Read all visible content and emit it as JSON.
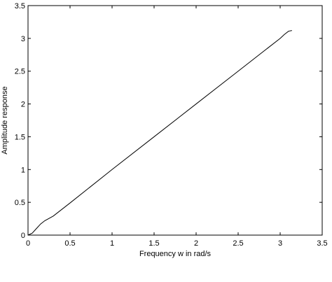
{
  "chart_data": {
    "type": "line",
    "title": "",
    "xlabel": "Frequency w in rad/s",
    "ylabel": "Amplitude response",
    "xlim": [
      0,
      3.5
    ],
    "ylim": [
      0,
      3.5
    ],
    "xticks": [
      "0",
      "0.5",
      "1",
      "1.5",
      "2",
      "2.5",
      "3",
      "3.5"
    ],
    "yticks": [
      "0",
      "0.5",
      "1",
      "1.5",
      "2",
      "2.5",
      "3",
      "3.5"
    ],
    "grid": false,
    "legend": "none",
    "series": [
      {
        "color": "#000000",
        "x": [
          0,
          0.05,
          0.1,
          0.15,
          0.2,
          0.3,
          0.5,
          1.0,
          1.5,
          2.0,
          2.5,
          3.0,
          3.05,
          3.1,
          3.14
        ],
        "y": [
          0,
          0.03,
          0.1,
          0.17,
          0.22,
          0.29,
          0.49,
          1.0,
          1.5,
          2.0,
          2.5,
          3.0,
          3.06,
          3.11,
          3.12
        ]
      }
    ]
  }
}
